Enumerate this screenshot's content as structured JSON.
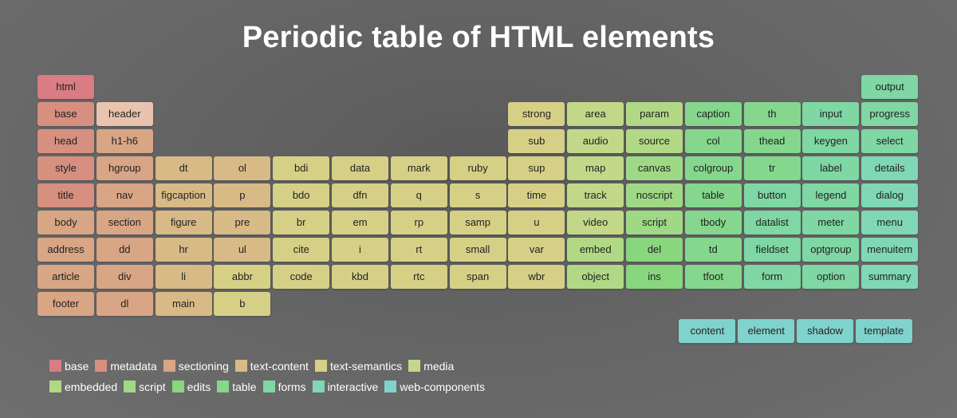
{
  "title": "Periodic table of HTML elements",
  "colors": {
    "base": "#d97c84",
    "metadata": "#d78f80",
    "metadata_light": "#e8c4ae",
    "sectioning": "#d8a585",
    "text_content": "#d8ba87",
    "text_semantics": "#d6d087",
    "media": "#c2d888",
    "embedded": "#b1d985",
    "script": "#9fd985",
    "edits": "#88d67e",
    "table": "#84d78d",
    "forms": "#7fd7a3",
    "interactive": "#7fd7b6",
    "web_components": "#80d2cd"
  },
  "elements": [
    {
      "label": "html",
      "col": 0,
      "row": 0,
      "cat": "base"
    },
    {
      "label": "base",
      "col": 0,
      "row": 1,
      "cat": "metadata"
    },
    {
      "label": "head",
      "col": 0,
      "row": 2,
      "cat": "metadata"
    },
    {
      "label": "style",
      "col": 0,
      "row": 3,
      "cat": "metadata"
    },
    {
      "label": "title",
      "col": 0,
      "row": 4,
      "cat": "metadata"
    },
    {
      "label": "body",
      "col": 0,
      "row": 5,
      "cat": "sectioning"
    },
    {
      "label": "address",
      "col": 0,
      "row": 6,
      "cat": "sectioning"
    },
    {
      "label": "article",
      "col": 0,
      "row": 7,
      "cat": "sectioning"
    },
    {
      "label": "footer",
      "col": 0,
      "row": 8,
      "cat": "sectioning"
    },
    {
      "label": "header",
      "col": 1,
      "row": 1,
      "cat": "metadata_light"
    },
    {
      "label": "h1-h6",
      "col": 1,
      "row": 2,
      "cat": "sectioning"
    },
    {
      "label": "hgroup",
      "col": 1,
      "row": 3,
      "cat": "sectioning"
    },
    {
      "label": "nav",
      "col": 1,
      "row": 4,
      "cat": "sectioning"
    },
    {
      "label": "section",
      "col": 1,
      "row": 5,
      "cat": "sectioning"
    },
    {
      "label": "dd",
      "col": 1,
      "row": 6,
      "cat": "sectioning"
    },
    {
      "label": "div",
      "col": 1,
      "row": 7,
      "cat": "sectioning"
    },
    {
      "label": "dl",
      "col": 1,
      "row": 8,
      "cat": "sectioning"
    },
    {
      "label": "dt",
      "col": 2,
      "row": 3,
      "cat": "text_content"
    },
    {
      "label": "figcaption",
      "col": 2,
      "row": 4,
      "cat": "text_content"
    },
    {
      "label": "figure",
      "col": 2,
      "row": 5,
      "cat": "text_content"
    },
    {
      "label": "hr",
      "col": 2,
      "row": 6,
      "cat": "text_content"
    },
    {
      "label": "li",
      "col": 2,
      "row": 7,
      "cat": "text_content"
    },
    {
      "label": "main",
      "col": 2,
      "row": 8,
      "cat": "text_content"
    },
    {
      "label": "ol",
      "col": 3,
      "row": 3,
      "cat": "text_content"
    },
    {
      "label": "p",
      "col": 3,
      "row": 4,
      "cat": "text_content"
    },
    {
      "label": "pre",
      "col": 3,
      "row": 5,
      "cat": "text_content"
    },
    {
      "label": "ul",
      "col": 3,
      "row": 6,
      "cat": "text_content"
    },
    {
      "label": "abbr",
      "col": 3,
      "row": 7,
      "cat": "text_semantics"
    },
    {
      "label": "b",
      "col": 3,
      "row": 8,
      "cat": "text_semantics"
    },
    {
      "label": "bdi",
      "col": 4,
      "row": 3,
      "cat": "text_semantics"
    },
    {
      "label": "bdo",
      "col": 4,
      "row": 4,
      "cat": "text_semantics"
    },
    {
      "label": "br",
      "col": 4,
      "row": 5,
      "cat": "text_semantics"
    },
    {
      "label": "cite",
      "col": 4,
      "row": 6,
      "cat": "text_semantics"
    },
    {
      "label": "code",
      "col": 4,
      "row": 7,
      "cat": "text_semantics"
    },
    {
      "label": "data",
      "col": 5,
      "row": 3,
      "cat": "text_semantics"
    },
    {
      "label": "dfn",
      "col": 5,
      "row": 4,
      "cat": "text_semantics"
    },
    {
      "label": "em",
      "col": 5,
      "row": 5,
      "cat": "text_semantics"
    },
    {
      "label": "i",
      "col": 5,
      "row": 6,
      "cat": "text_semantics"
    },
    {
      "label": "kbd",
      "col": 5,
      "row": 7,
      "cat": "text_semantics"
    },
    {
      "label": "mark",
      "col": 6,
      "row": 3,
      "cat": "text_semantics"
    },
    {
      "label": "q",
      "col": 6,
      "row": 4,
      "cat": "text_semantics"
    },
    {
      "label": "rp",
      "col": 6,
      "row": 5,
      "cat": "text_semantics"
    },
    {
      "label": "rt",
      "col": 6,
      "row": 6,
      "cat": "text_semantics"
    },
    {
      "label": "rtc",
      "col": 6,
      "row": 7,
      "cat": "text_semantics"
    },
    {
      "label": "ruby",
      "col": 7,
      "row": 3,
      "cat": "text_semantics"
    },
    {
      "label": "s",
      "col": 7,
      "row": 4,
      "cat": "text_semantics"
    },
    {
      "label": "samp",
      "col": 7,
      "row": 5,
      "cat": "text_semantics"
    },
    {
      "label": "small",
      "col": 7,
      "row": 6,
      "cat": "text_semantics"
    },
    {
      "label": "span",
      "col": 7,
      "row": 7,
      "cat": "text_semantics"
    },
    {
      "label": "strong",
      "col": 8,
      "row": 1,
      "cat": "text_semantics"
    },
    {
      "label": "sub",
      "col": 8,
      "row": 2,
      "cat": "text_semantics"
    },
    {
      "label": "sup",
      "col": 8,
      "row": 3,
      "cat": "text_semantics"
    },
    {
      "label": "time",
      "col": 8,
      "row": 4,
      "cat": "text_semantics"
    },
    {
      "label": "u",
      "col": 8,
      "row": 5,
      "cat": "text_semantics"
    },
    {
      "label": "var",
      "col": 8,
      "row": 6,
      "cat": "text_semantics"
    },
    {
      "label": "wbr",
      "col": 8,
      "row": 7,
      "cat": "text_semantics"
    },
    {
      "label": "area",
      "col": 9,
      "row": 1,
      "cat": "media"
    },
    {
      "label": "audio",
      "col": 9,
      "row": 2,
      "cat": "media"
    },
    {
      "label": "map",
      "col": 9,
      "row": 3,
      "cat": "media"
    },
    {
      "label": "track",
      "col": 9,
      "row": 4,
      "cat": "media"
    },
    {
      "label": "video",
      "col": 9,
      "row": 5,
      "cat": "media"
    },
    {
      "label": "embed",
      "col": 9,
      "row": 6,
      "cat": "embedded"
    },
    {
      "label": "object",
      "col": 9,
      "row": 7,
      "cat": "embedded"
    },
    {
      "label": "param",
      "col": 10,
      "row": 1,
      "cat": "embedded"
    },
    {
      "label": "source",
      "col": 10,
      "row": 2,
      "cat": "embedded"
    },
    {
      "label": "canvas",
      "col": 10,
      "row": 3,
      "cat": "script"
    },
    {
      "label": "noscript",
      "col": 10,
      "row": 4,
      "cat": "script"
    },
    {
      "label": "script",
      "col": 10,
      "row": 5,
      "cat": "script"
    },
    {
      "label": "del",
      "col": 10,
      "row": 6,
      "cat": "edits"
    },
    {
      "label": "ins",
      "col": 10,
      "row": 7,
      "cat": "edits"
    },
    {
      "label": "caption",
      "col": 11,
      "row": 1,
      "cat": "table"
    },
    {
      "label": "col",
      "col": 11,
      "row": 2,
      "cat": "table"
    },
    {
      "label": "colgroup",
      "col": 11,
      "row": 3,
      "cat": "table"
    },
    {
      "label": "table",
      "col": 11,
      "row": 4,
      "cat": "table"
    },
    {
      "label": "tbody",
      "col": 11,
      "row": 5,
      "cat": "table"
    },
    {
      "label": "td",
      "col": 11,
      "row": 6,
      "cat": "table"
    },
    {
      "label": "tfoot",
      "col": 11,
      "row": 7,
      "cat": "table"
    },
    {
      "label": "th",
      "col": 12,
      "row": 1,
      "cat": "table"
    },
    {
      "label": "thead",
      "col": 12,
      "row": 2,
      "cat": "table"
    },
    {
      "label": "tr",
      "col": 12,
      "row": 3,
      "cat": "table"
    },
    {
      "label": "button",
      "col": 12,
      "row": 4,
      "cat": "forms"
    },
    {
      "label": "datalist",
      "col": 12,
      "row": 5,
      "cat": "forms"
    },
    {
      "label": "fieldset",
      "col": 12,
      "row": 6,
      "cat": "forms"
    },
    {
      "label": "form",
      "col": 12,
      "row": 7,
      "cat": "forms"
    },
    {
      "label": "input",
      "col": 13,
      "row": 1,
      "cat": "forms"
    },
    {
      "label": "keygen",
      "col": 13,
      "row": 2,
      "cat": "forms"
    },
    {
      "label": "label",
      "col": 13,
      "row": 3,
      "cat": "forms"
    },
    {
      "label": "legend",
      "col": 13,
      "row": 4,
      "cat": "forms"
    },
    {
      "label": "meter",
      "col": 13,
      "row": 5,
      "cat": "forms"
    },
    {
      "label": "optgroup",
      "col": 13,
      "row": 6,
      "cat": "forms"
    },
    {
      "label": "option",
      "col": 13,
      "row": 7,
      "cat": "forms"
    },
    {
      "label": "output",
      "col": 14,
      "row": 0,
      "cat": "forms"
    },
    {
      "label": "progress",
      "col": 14,
      "row": 1,
      "cat": "forms"
    },
    {
      "label": "select",
      "col": 14,
      "row": 2,
      "cat": "forms"
    },
    {
      "label": "details",
      "col": 14,
      "row": 3,
      "cat": "interactive"
    },
    {
      "label": "dialog",
      "col": 14,
      "row": 4,
      "cat": "interactive"
    },
    {
      "label": "menu",
      "col": 14,
      "row": 5,
      "cat": "interactive"
    },
    {
      "label": "menuitem",
      "col": 14,
      "row": 6,
      "cat": "interactive"
    },
    {
      "label": "summary",
      "col": 14,
      "row": 7,
      "cat": "interactive"
    },
    {
      "label": "content",
      "col": 10.9,
      "row": 9,
      "cat": "web_components"
    },
    {
      "label": "element",
      "col": 11.9,
      "row": 9,
      "cat": "web_components"
    },
    {
      "label": "shadow",
      "col": 12.9,
      "row": 9,
      "cat": "web_components"
    },
    {
      "label": "template",
      "col": 13.9,
      "row": 9,
      "cat": "web_components"
    }
  ],
  "legend": [
    [
      {
        "label": "base",
        "cat": "base"
      },
      {
        "label": "metadata",
        "cat": "metadata"
      },
      {
        "label": "sectioning",
        "cat": "sectioning"
      },
      {
        "label": "text-content",
        "cat": "text_content"
      },
      {
        "label": "text-semantics",
        "cat": "text_semantics"
      },
      {
        "label": "media",
        "cat": "media"
      }
    ],
    [
      {
        "label": "embedded",
        "cat": "embedded"
      },
      {
        "label": "script",
        "cat": "script"
      },
      {
        "label": "edits",
        "cat": "edits"
      },
      {
        "label": "table",
        "cat": "table"
      },
      {
        "label": "forms",
        "cat": "forms"
      },
      {
        "label": "interactive",
        "cat": "interactive"
      },
      {
        "label": "web-components",
        "cat": "web_components"
      }
    ]
  ]
}
